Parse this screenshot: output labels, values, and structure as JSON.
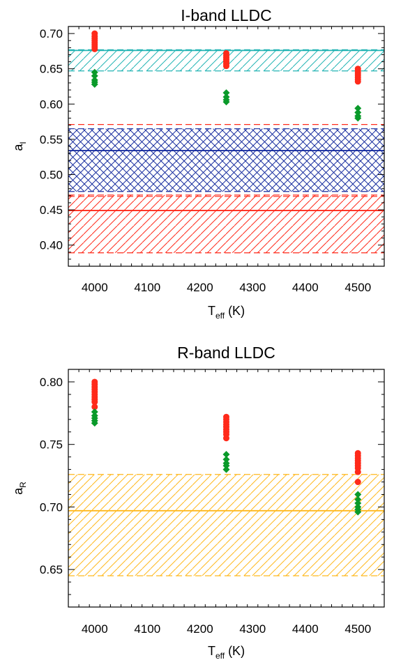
{
  "colors": {
    "red": "#ff2a1a",
    "green": "#0a9a2a",
    "cyan": "#22b4b4",
    "blue": "#1a2fa0",
    "orange": "#ffb81c",
    "axis": "#000000"
  },
  "chart_data": [
    {
      "type": "scatter",
      "title": "I-band LLDC",
      "xlabel": {
        "main": "T",
        "sub": "eff",
        "unit": " (K)"
      },
      "ylabel": {
        "main": "a",
        "sub": "I"
      },
      "xlim": [
        3950,
        4550
      ],
      "ylim": [
        0.37,
        0.71
      ],
      "xticks": [
        4000,
        4100,
        4200,
        4300,
        4400,
        4500
      ],
      "yticks": [
        0.4,
        0.45,
        0.5,
        0.55,
        0.6,
        0.65,
        0.7
      ],
      "ytick_format": 2,
      "grid": false,
      "bands": [
        {
          "name": "",
          "color": "red",
          "center": 0.449,
          "low": 0.389,
          "high": 0.471,
          "hatch": "forward"
        },
        {
          "name": "",
          "color": "blue",
          "center": 0.534,
          "low": 0.476,
          "high": 0.565,
          "hatch": "cross"
        },
        {
          "name": "",
          "color": "cyan",
          "center": 0.676,
          "low": 0.647,
          "high": 0.677,
          "hatch": "forward"
        }
      ],
      "extra_lines": [
        {
          "color": "red",
          "value": 0.571,
          "dash": true
        },
        {
          "color": "red",
          "value": 0.469,
          "dash": true
        }
      ],
      "series": [
        {
          "marker": "circle",
          "color": "red",
          "points": [
            [
              4000,
              0.7
            ],
            [
              4000,
              0.696
            ],
            [
              4000,
              0.693
            ],
            [
              4000,
              0.69
            ],
            [
              4000,
              0.687
            ],
            [
              4000,
              0.684
            ],
            [
              4000,
              0.681
            ],
            [
              4000,
              0.678
            ],
            [
              4250,
              0.672
            ],
            [
              4250,
              0.669
            ],
            [
              4250,
              0.666
            ],
            [
              4250,
              0.663
            ],
            [
              4250,
              0.66
            ],
            [
              4250,
              0.657
            ],
            [
              4250,
              0.654
            ],
            [
              4500,
              0.65
            ],
            [
              4500,
              0.647
            ],
            [
              4500,
              0.644
            ],
            [
              4500,
              0.641
            ],
            [
              4500,
              0.638
            ],
            [
              4500,
              0.635
            ],
            [
              4500,
              0.632
            ]
          ]
        },
        {
          "marker": "diamond",
          "color": "green",
          "points": [
            [
              4000,
              0.645
            ],
            [
              4000,
              0.64
            ],
            [
              4000,
              0.634
            ],
            [
              4000,
              0.631
            ],
            [
              4000,
              0.628
            ],
            [
              4250,
              0.616
            ],
            [
              4250,
              0.61
            ],
            [
              4250,
              0.606
            ],
            [
              4250,
              0.603
            ],
            [
              4500,
              0.594
            ],
            [
              4500,
              0.588
            ],
            [
              4500,
              0.583
            ],
            [
              4500,
              0.58
            ]
          ]
        }
      ]
    },
    {
      "type": "scatter",
      "title": "R-band LLDC",
      "xlabel": {
        "main": "T",
        "sub": "eff",
        "unit": " (K)"
      },
      "ylabel": {
        "main": "a",
        "sub": "R"
      },
      "xlim": [
        3950,
        4550
      ],
      "ylim": [
        0.62,
        0.81
      ],
      "xticks": [
        4000,
        4100,
        4200,
        4300,
        4400,
        4500
      ],
      "yticks": [
        0.65,
        0.7,
        0.75,
        0.8
      ],
      "ytick_format": 2,
      "grid": false,
      "bands": [
        {
          "name": "",
          "color": "orange",
          "center": 0.697,
          "low": 0.645,
          "high": 0.726,
          "hatch": "forward"
        }
      ],
      "extra_lines": [],
      "series": [
        {
          "marker": "circle",
          "color": "red",
          "points": [
            [
              4000,
              0.8
            ],
            [
              4000,
              0.798
            ],
            [
              4000,
              0.796
            ],
            [
              4000,
              0.794
            ],
            [
              4000,
              0.792
            ],
            [
              4000,
              0.79
            ],
            [
              4000,
              0.788
            ],
            [
              4000,
              0.786
            ],
            [
              4000,
              0.784
            ],
            [
              4000,
              0.78
            ],
            [
              4250,
              0.772
            ],
            [
              4250,
              0.77
            ],
            [
              4250,
              0.768
            ],
            [
              4250,
              0.766
            ],
            [
              4250,
              0.764
            ],
            [
              4250,
              0.762
            ],
            [
              4250,
              0.76
            ],
            [
              4250,
              0.758
            ],
            [
              4250,
              0.755
            ],
            [
              4500,
              0.743
            ],
            [
              4500,
              0.741
            ],
            [
              4500,
              0.739
            ],
            [
              4500,
              0.737
            ],
            [
              4500,
              0.735
            ],
            [
              4500,
              0.733
            ],
            [
              4500,
              0.731
            ],
            [
              4500,
              0.728
            ],
            [
              4500,
              0.72
            ]
          ]
        },
        {
          "marker": "diamond",
          "color": "green",
          "points": [
            [
              4000,
              0.776
            ],
            [
              4000,
              0.773
            ],
            [
              4000,
              0.771
            ],
            [
              4000,
              0.769
            ],
            [
              4000,
              0.767
            ],
            [
              4250,
              0.742
            ],
            [
              4250,
              0.738
            ],
            [
              4250,
              0.735
            ],
            [
              4250,
              0.733
            ],
            [
              4250,
              0.73
            ],
            [
              4500,
              0.71
            ],
            [
              4500,
              0.706
            ],
            [
              4500,
              0.703
            ],
            [
              4500,
              0.7
            ],
            [
              4500,
              0.698
            ],
            [
              4500,
              0.696
            ]
          ]
        }
      ]
    }
  ]
}
